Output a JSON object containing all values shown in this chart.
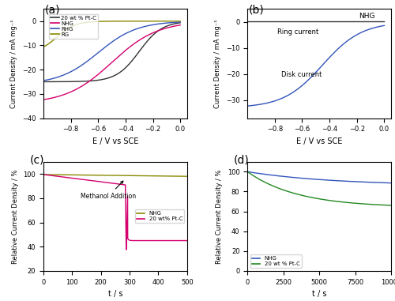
{
  "fig_width": 5.0,
  "fig_height": 3.81,
  "dpi": 100,
  "panel_labels": [
    "(a)",
    "(b)",
    "(c)",
    "(d)"
  ],
  "panel_label_fontsize": 10,
  "a_xlabel": "E / V vs SCE",
  "a_ylabel": "Current Density / mA mg⁻¹",
  "a_xlim": [
    -1.0,
    0.05
  ],
  "a_ylim": [
    -40,
    5
  ],
  "a_xticks": [
    -0.8,
    -0.6,
    -0.4,
    -0.2,
    0.0
  ],
  "a_yticks": [
    -40,
    -30,
    -20,
    -10,
    0
  ],
  "a_legend_labels": [
    "20 wt % Pt-C",
    "NHG",
    "RHG",
    "RG"
  ],
  "a_colors": [
    "#333333",
    "#d4006e",
    "#3355bb",
    "#888800"
  ],
  "b_xlabel": "E / V vs SCE",
  "b_ylabel": "Current Density / mA mg⁻¹",
  "b_xlim": [
    -1.0,
    0.05
  ],
  "b_ylim": [
    -37,
    5
  ],
  "b_xticks": [
    -0.8,
    -0.6,
    -0.4,
    -0.2,
    0.0
  ],
  "b_yticks": [
    -30,
    -20,
    -10,
    0
  ],
  "b_legend_label": "NHG",
  "b_color": "#3355bb",
  "b_ring_label": "Ring current",
  "b_disk_label": "Disk current",
  "c_xlabel": "t / s",
  "c_ylabel": "Relative Current Density / %",
  "c_xlim": [
    0,
    500
  ],
  "c_ylim": [
    20,
    110
  ],
  "c_xticks": [
    0,
    100,
    200,
    300,
    400,
    500
  ],
  "c_yticks": [
    20,
    40,
    60,
    80,
    100
  ],
  "c_legend_labels": [
    "NHG",
    "20 wt% Pt-C"
  ],
  "c_colors": [
    "#888800",
    "#d4006e"
  ],
  "c_annotation": "Methanol Addition",
  "c_methanol_t": 285,
  "d_xlabel": "t / s",
  "d_ylabel": "Relative Current Density / %",
  "d_xlim": [
    0,
    10000
  ],
  "d_ylim": [
    0,
    110
  ],
  "d_xticks": [
    0,
    2500,
    5000,
    7500,
    10000
  ],
  "d_yticks": [
    0,
    20,
    40,
    60,
    80,
    100
  ],
  "d_legend_labels": [
    "NHG",
    "20 wt % Pt-C"
  ],
  "d_colors": [
    "#3355bb",
    "#228822"
  ]
}
